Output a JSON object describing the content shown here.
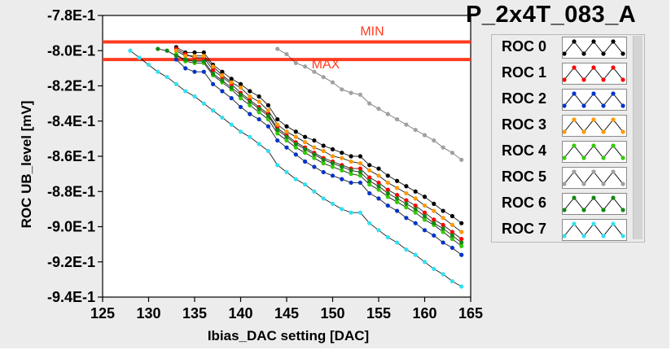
{
  "window": {
    "module_title": "P_2x4T_083_A"
  },
  "legend": {
    "items": [
      {
        "label": "ROC 0",
        "color": "#000000"
      },
      {
        "label": "ROC 1",
        "color": "#ff0000"
      },
      {
        "label": "ROC 2",
        "color": "#0033cc"
      },
      {
        "label": "ROC 3",
        "color": "#ff9900"
      },
      {
        "label": "ROC 4",
        "color": "#33cc00"
      },
      {
        "label": "ROC 5",
        "color": "#a0a0a0"
      },
      {
        "label": "ROC 6",
        "color": "#118811"
      },
      {
        "label": "ROC 7",
        "color": "#33e0f0"
      }
    ]
  },
  "chart_data": {
    "type": "line",
    "title": "",
    "xlabel": "Ibias_DAC setting [DAC]",
    "ylabel": "ROC UB_level [mV]",
    "xlim": [
      125,
      165
    ],
    "ylim": [
      -0.94,
      -0.78
    ],
    "x_ticks": [
      125,
      130,
      135,
      140,
      145,
      150,
      155,
      160,
      165
    ],
    "y_ticks": [
      -0.78,
      -0.8,
      -0.82,
      -0.84,
      -0.86,
      -0.88,
      -0.9,
      -0.92,
      -0.94
    ],
    "y_tick_labels": [
      "-7.8E-1",
      "-8.0E-1",
      "-8.2E-1",
      "-8.4E-1",
      "-8.6E-1",
      "-8.8E-1",
      "-9.0E-1",
      "-9.2E-1",
      "-9.4E-1"
    ],
    "x_tick_labels": [
      "125",
      "130",
      "135",
      "140",
      "145",
      "150",
      "155",
      "160",
      "165"
    ],
    "grid": false,
    "reference_lines": [
      {
        "label": "MIN",
        "y": -0.795,
        "color": "#ff3b1f"
      },
      {
        "label": "MAX",
        "y": -0.805,
        "color": "#ff3b1f"
      }
    ],
    "series": [
      {
        "name": "ROC 0",
        "color": "#000000",
        "x": [
          133,
          134,
          135,
          136,
          137,
          138,
          139,
          140,
          141,
          142,
          143,
          144,
          145,
          146,
          147,
          148,
          149,
          150,
          151,
          152,
          153,
          154,
          155,
          156,
          157,
          158,
          159,
          160,
          161,
          162,
          163,
          164
        ],
        "y": [
          -0.798,
          -0.801,
          -0.801,
          -0.801,
          -0.808,
          -0.812,
          -0.816,
          -0.819,
          -0.823,
          -0.826,
          -0.831,
          -0.839,
          -0.843,
          -0.846,
          -0.849,
          -0.851,
          -0.854,
          -0.856,
          -0.858,
          -0.86,
          -0.86,
          -0.865,
          -0.867,
          -0.871,
          -0.874,
          -0.877,
          -0.88,
          -0.883,
          -0.887,
          -0.891,
          -0.894,
          -0.898
        ]
      },
      {
        "name": "ROC 1",
        "color": "#ff0000",
        "x": [
          133,
          134,
          135,
          136,
          137,
          138,
          139,
          140,
          141,
          142,
          143,
          144,
          145,
          146,
          147,
          148,
          149,
          150,
          151,
          152,
          153,
          154,
          155,
          156,
          157,
          158,
          159,
          160,
          161,
          162,
          163,
          164
        ],
        "y": [
          -0.799,
          -0.802,
          -0.804,
          -0.804,
          -0.811,
          -0.815,
          -0.819,
          -0.824,
          -0.828,
          -0.832,
          -0.836,
          -0.844,
          -0.848,
          -0.852,
          -0.855,
          -0.858,
          -0.861,
          -0.863,
          -0.865,
          -0.867,
          -0.867,
          -0.872,
          -0.875,
          -0.879,
          -0.882,
          -0.885,
          -0.888,
          -0.892,
          -0.896,
          -0.899,
          -0.903,
          -0.907
        ]
      },
      {
        "name": "ROC 2",
        "color": "#0033cc",
        "x": [
          133,
          134,
          135,
          136,
          137,
          138,
          139,
          140,
          141,
          142,
          143,
          144,
          145,
          146,
          147,
          148,
          149,
          150,
          151,
          152,
          153,
          154,
          155,
          156,
          157,
          158,
          159,
          160,
          161,
          162,
          163,
          164
        ],
        "y": [
          -0.805,
          -0.81,
          -0.812,
          -0.812,
          -0.819,
          -0.823,
          -0.827,
          -0.832,
          -0.836,
          -0.839,
          -0.843,
          -0.851,
          -0.855,
          -0.859,
          -0.863,
          -0.866,
          -0.869,
          -0.871,
          -0.873,
          -0.875,
          -0.875,
          -0.881,
          -0.884,
          -0.888,
          -0.891,
          -0.895,
          -0.898,
          -0.902,
          -0.905,
          -0.909,
          -0.912,
          -0.916
        ]
      },
      {
        "name": "ROC 3",
        "color": "#ff9900",
        "x": [
          133,
          134,
          135,
          136,
          137,
          138,
          139,
          140,
          141,
          142,
          143,
          144,
          145,
          146,
          147,
          148,
          149,
          150,
          151,
          152,
          153,
          154,
          155,
          156,
          157,
          158,
          159,
          160,
          161,
          162,
          163,
          164
        ],
        "y": [
          -0.8,
          -0.803,
          -0.803,
          -0.803,
          -0.809,
          -0.814,
          -0.818,
          -0.821,
          -0.826,
          -0.829,
          -0.834,
          -0.842,
          -0.846,
          -0.849,
          -0.852,
          -0.855,
          -0.857,
          -0.86,
          -0.861,
          -0.863,
          -0.864,
          -0.868,
          -0.871,
          -0.875,
          -0.878,
          -0.881,
          -0.884,
          -0.888,
          -0.891,
          -0.895,
          -0.899,
          -0.903
        ]
      },
      {
        "name": "ROC 4",
        "color": "#33cc00",
        "x": [
          133,
          134,
          135,
          136,
          137,
          138,
          139,
          140,
          141,
          142,
          143,
          144,
          145,
          146,
          147,
          148,
          149,
          150,
          151,
          152,
          153,
          154,
          155,
          156,
          157,
          158,
          159,
          160,
          161,
          162,
          163,
          164
        ],
        "y": [
          -0.802,
          -0.806,
          -0.807,
          -0.807,
          -0.814,
          -0.818,
          -0.822,
          -0.827,
          -0.831,
          -0.835,
          -0.839,
          -0.847,
          -0.851,
          -0.855,
          -0.858,
          -0.861,
          -0.864,
          -0.866,
          -0.868,
          -0.87,
          -0.871,
          -0.876,
          -0.879,
          -0.883,
          -0.886,
          -0.889,
          -0.892,
          -0.896,
          -0.899,
          -0.903,
          -0.907,
          -0.911
        ]
      },
      {
        "name": "ROC 5",
        "color": "#a0a0a0",
        "x": [
          144,
          145,
          146,
          147,
          148,
          149,
          150,
          151,
          152,
          153,
          154,
          155,
          156,
          157,
          158,
          159,
          160,
          161,
          162,
          163,
          164
        ],
        "y": [
          -0.799,
          -0.802,
          -0.807,
          -0.809,
          -0.812,
          -0.815,
          -0.818,
          -0.822,
          -0.824,
          -0.825,
          -0.83,
          -0.833,
          -0.836,
          -0.839,
          -0.842,
          -0.845,
          -0.848,
          -0.851,
          -0.855,
          -0.858,
          -0.862
        ]
      },
      {
        "name": "ROC 6",
        "color": "#118811",
        "x": [
          131,
          132,
          133,
          134,
          135,
          136,
          137,
          138,
          139,
          140,
          141,
          142,
          143,
          144,
          145,
          146,
          147,
          148,
          149,
          150,
          151,
          152,
          153,
          154,
          155,
          156,
          157,
          158,
          159,
          160,
          161,
          162,
          163,
          164
        ],
        "y": [
          -0.799,
          -0.8,
          -0.803,
          -0.805,
          -0.806,
          -0.806,
          -0.813,
          -0.817,
          -0.821,
          -0.825,
          -0.829,
          -0.833,
          -0.837,
          -0.845,
          -0.849,
          -0.853,
          -0.856,
          -0.859,
          -0.862,
          -0.864,
          -0.866,
          -0.868,
          -0.869,
          -0.874,
          -0.877,
          -0.881,
          -0.884,
          -0.887,
          -0.89,
          -0.894,
          -0.898,
          -0.901,
          -0.905,
          -0.909
        ]
      },
      {
        "name": "ROC 7",
        "color": "#33e0f0",
        "x": [
          128,
          129,
          130,
          131,
          132,
          133,
          134,
          135,
          136,
          137,
          138,
          139,
          140,
          141,
          142,
          143,
          144,
          145,
          146,
          147,
          148,
          149,
          150,
          151,
          152,
          153,
          154,
          155,
          156,
          157,
          158,
          159,
          160,
          161,
          162,
          163,
          164
        ],
        "y": [
          -0.8,
          -0.804,
          -0.808,
          -0.812,
          -0.815,
          -0.819,
          -0.823,
          -0.826,
          -0.83,
          -0.834,
          -0.838,
          -0.842,
          -0.846,
          -0.849,
          -0.853,
          -0.857,
          -0.865,
          -0.869,
          -0.873,
          -0.876,
          -0.88,
          -0.884,
          -0.887,
          -0.89,
          -0.892,
          -0.892,
          -0.898,
          -0.902,
          -0.906,
          -0.909,
          -0.913,
          -0.916,
          -0.92,
          -0.924,
          -0.927,
          -0.931,
          -0.934
        ]
      }
    ]
  }
}
